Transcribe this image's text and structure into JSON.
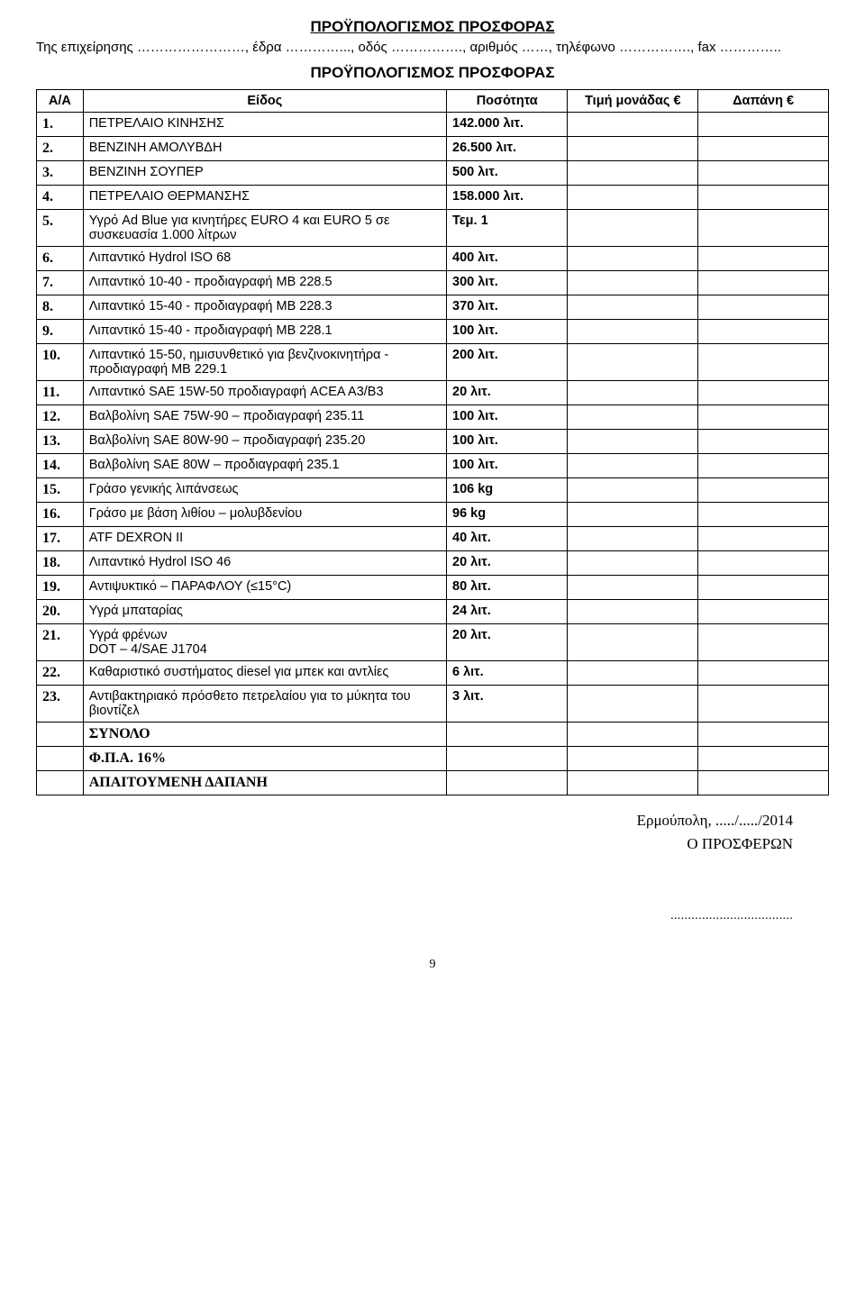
{
  "header": {
    "title_main": "ΠΡΟΫΠΟΛΟΓΙΣΜΟΣ ΠΡΟΣΦΟΡΑΣ",
    "company_line": "Της επιχείρησης ……………………, έδρα …………..., οδός ……………., αριθμός ……, τηλέφωνο ……………., fax …………..",
    "title_sub": "ΠΡΟΫΠΟΛΟΓΙΣΜΟΣ ΠΡΟΣΦΟΡΑΣ"
  },
  "columns": {
    "idx": "Α/Α",
    "item": "Είδος",
    "qty": "Ποσότητα",
    "price": "Τιμή μονάδας €",
    "cost": "Δαπάνη €"
  },
  "rows": [
    {
      "idx": "1.",
      "item": "ΠΕΤΡΕΛΑΙΟ ΚΙΝΗΣΗΣ",
      "qty": "142.000 λιτ."
    },
    {
      "idx": "2.",
      "item": "ΒΕΝΖΙΝΗ ΑΜΟΛΥΒΔΗ",
      "qty": "26.500 λιτ."
    },
    {
      "idx": "3.",
      "item": "ΒΕΝΖΙΝΗ ΣΟΥΠΕΡ",
      "qty": "500 λιτ."
    },
    {
      "idx": "4.",
      "item": "ΠΕΤΡΕΛΑΙΟ ΘΕΡΜΑΝΣΗΣ",
      "qty": "158.000 λιτ."
    },
    {
      "idx": "5.",
      "item": "Υγρό Ad Blue για κινητήρες EURO 4 και EURO 5 σε συσκευασία 1.000 λίτρων",
      "qty": "Τεμ. 1"
    },
    {
      "idx": "6.",
      "item": "Λιπαντικό Hydrol ISO 68",
      "qty": "400 λιτ."
    },
    {
      "idx": "7.",
      "item": "Λιπαντικό 10-40 - προδιαγραφή ΜΒ 228.5",
      "qty": "300 λιτ."
    },
    {
      "idx": "8.",
      "item": "Λιπαντικό 15-40 - προδιαγραφή ΜΒ 228.3",
      "qty": "370 λιτ."
    },
    {
      "idx": "9.",
      "item": "Λιπαντικό 15-40 - προδιαγραφή ΜΒ 228.1",
      "qty": "100 λιτ."
    },
    {
      "idx": "10.",
      "item": "Λιπαντικό 15-50, ημισυνθετικό για βενζινοκινητήρα - προδιαγραφή ΜΒ 229.1",
      "qty": "200 λιτ."
    },
    {
      "idx": "11.",
      "item": "Λιπαντικό SAE 15W-50 προδιαγραφή ACEA A3/B3",
      "qty": "20 λιτ."
    },
    {
      "idx": "12.",
      "item": "Βαλβολίνη SAE 75W-90 – προδιαγραφή 235.11",
      "qty": "100 λιτ."
    },
    {
      "idx": "13.",
      "item": "Βαλβολίνη SAE 80W-90 – προδιαγραφή 235.20",
      "qty": "100 λιτ."
    },
    {
      "idx": "14.",
      "item": "Βαλβολίνη SAE 80W – προδιαγραφή 235.1",
      "qty": "100 λιτ."
    },
    {
      "idx": "15.",
      "item": "Γράσο γενικής λιπάνσεως",
      "qty": "106 kg"
    },
    {
      "idx": "16.",
      "item": "Γράσο με βάση λιθίου – μολυβδενίου",
      "qty": "96 kg"
    },
    {
      "idx": "17.",
      "item": "ATF  DEXRON II",
      "qty": "40 λιτ."
    },
    {
      "idx": "18.",
      "item": "Λιπαντικό Hydrol ISO 46",
      "qty": "20 λιτ."
    },
    {
      "idx": "19.",
      "item": "Αντιψυκτικό – ΠΑΡΑΦΛΟΥ (≤15°C)",
      "qty": "80 λιτ."
    },
    {
      "idx": "20.",
      "item": "Υγρά μπαταρίας",
      "qty": "24 λιτ."
    },
    {
      "idx": "21.",
      "item": "Υγρά φρένων\nDOT – 4/SAE J1704",
      "qty": "20 λιτ."
    },
    {
      "idx": "22.",
      "item": "Καθαριστικό συστήματος diesel για μπεκ και αντλίες",
      "qty": "6 λιτ."
    },
    {
      "idx": "23.",
      "item": "Αντιβακτηριακό πρόσθετο πετρελαίου για το μύκητα του βιοντίζελ",
      "qty": "3 λιτ."
    }
  ],
  "footer_rows": [
    {
      "label": "ΣΥΝΟΛΟ"
    },
    {
      "label": "Φ.Π.Α. 16%"
    },
    {
      "label": "ΑΠΑΙΤΟΥΜΕΝΗ ΔΑΠΑΝΗ"
    }
  ],
  "footer": {
    "place_date": "Ερμούπολη, ...../...../2014",
    "signer": "Ο ΠΡΟΣΦΕΡΩΝ",
    "dots": "..................................."
  },
  "pagenum": "9"
}
